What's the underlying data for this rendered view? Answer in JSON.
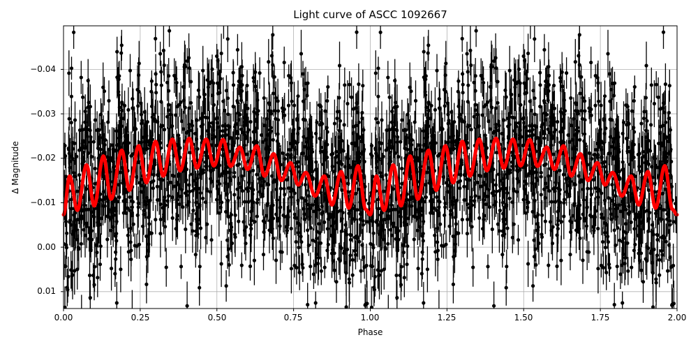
{
  "chart_data": {
    "type": "scatter",
    "title": "Light curve of ASCC 1092667",
    "xlabel": "Phase",
    "ylabel": "Δ Magnitude",
    "xlim": [
      0.0,
      2.0
    ],
    "ylim": [
      0.0138,
      -0.0498
    ],
    "y_inverted": true,
    "grid": true,
    "legend": null,
    "x_ticks": [
      "0.00",
      "0.25",
      "0.50",
      "0.75",
      "1.00",
      "1.25",
      "1.50",
      "1.75",
      "2.00"
    ],
    "y_ticks": [
      "−0.04",
      "−0.03",
      "−0.02",
      "−0.01",
      "0.00",
      "0.01"
    ],
    "y_tick_values": [
      -0.04,
      -0.03,
      -0.02,
      -0.01,
      0.0,
      0.01
    ],
    "series": [
      {
        "name": "observations",
        "style": "black points with vertical error bars",
        "color": "#000000",
        "description": "dense scatter spanning roughly -0.05 to +0.014 around the model, repeated over two phase cycles",
        "approx_center": -0.014,
        "approx_scatter_sd": 0.011,
        "approx_errorbar_halfwidth": 0.004
      },
      {
        "name": "model",
        "style": "thick red line",
        "color": "#ff0000",
        "phase": [
          0.0,
          0.02,
          0.045,
          0.075,
          0.1,
          0.13,
          0.155,
          0.19,
          0.215,
          0.245,
          0.27,
          0.3,
          0.325,
          0.355,
          0.38,
          0.41,
          0.435,
          0.465,
          0.49,
          0.52,
          0.545,
          0.575,
          0.6,
          0.63,
          0.655,
          0.685,
          0.71,
          0.74,
          0.765,
          0.79,
          0.82,
          0.85,
          0.875,
          0.905,
          0.93,
          0.96,
          0.985,
          1.0
        ],
        "dmag": [
          -0.0073,
          -0.016,
          -0.0083,
          -0.0185,
          -0.0093,
          -0.0205,
          -0.0108,
          -0.0218,
          -0.0128,
          -0.0228,
          -0.0145,
          -0.0238,
          -0.016,
          -0.0243,
          -0.0172,
          -0.0245,
          -0.0178,
          -0.0243,
          -0.0183,
          -0.0242,
          -0.0182,
          -0.0225,
          -0.0175,
          -0.0228,
          -0.016,
          -0.021,
          -0.015,
          -0.019,
          -0.014,
          -0.0168,
          -0.0115,
          -0.016,
          -0.0095,
          -0.017,
          -0.0088,
          -0.0183,
          -0.0085,
          -0.0073
        ],
        "repeats": 2
      }
    ]
  }
}
